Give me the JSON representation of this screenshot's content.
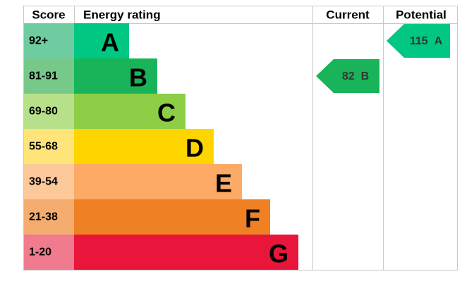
{
  "header": {
    "score": "Score",
    "rating": "Energy rating",
    "current": "Current",
    "potential": "Potential"
  },
  "bands": [
    {
      "score": "92+",
      "letter": "A",
      "color": "#00c781",
      "score_color": "#6fcca0"
    },
    {
      "score": "81-91",
      "letter": "B",
      "color": "#19b459",
      "score_color": "#77c98a"
    },
    {
      "score": "69-80",
      "letter": "C",
      "color": "#8dce46",
      "score_color": "#b8e08a"
    },
    {
      "score": "55-68",
      "letter": "D",
      "color": "#ffd500",
      "score_color": "#ffe47a"
    },
    {
      "score": "39-54",
      "letter": "E",
      "color": "#fcaa65",
      "score_color": "#fdc89a"
    },
    {
      "score": "21-38",
      "letter": "F",
      "color": "#ef8023",
      "score_color": "#f4ad6f"
    },
    {
      "score": "1-20",
      "letter": "G",
      "color": "#e9153b",
      "score_color": "#f07a8e"
    }
  ],
  "current": {
    "value": 82,
    "letter": "B"
  },
  "potential": {
    "value": 115,
    "letter": "A"
  }
}
